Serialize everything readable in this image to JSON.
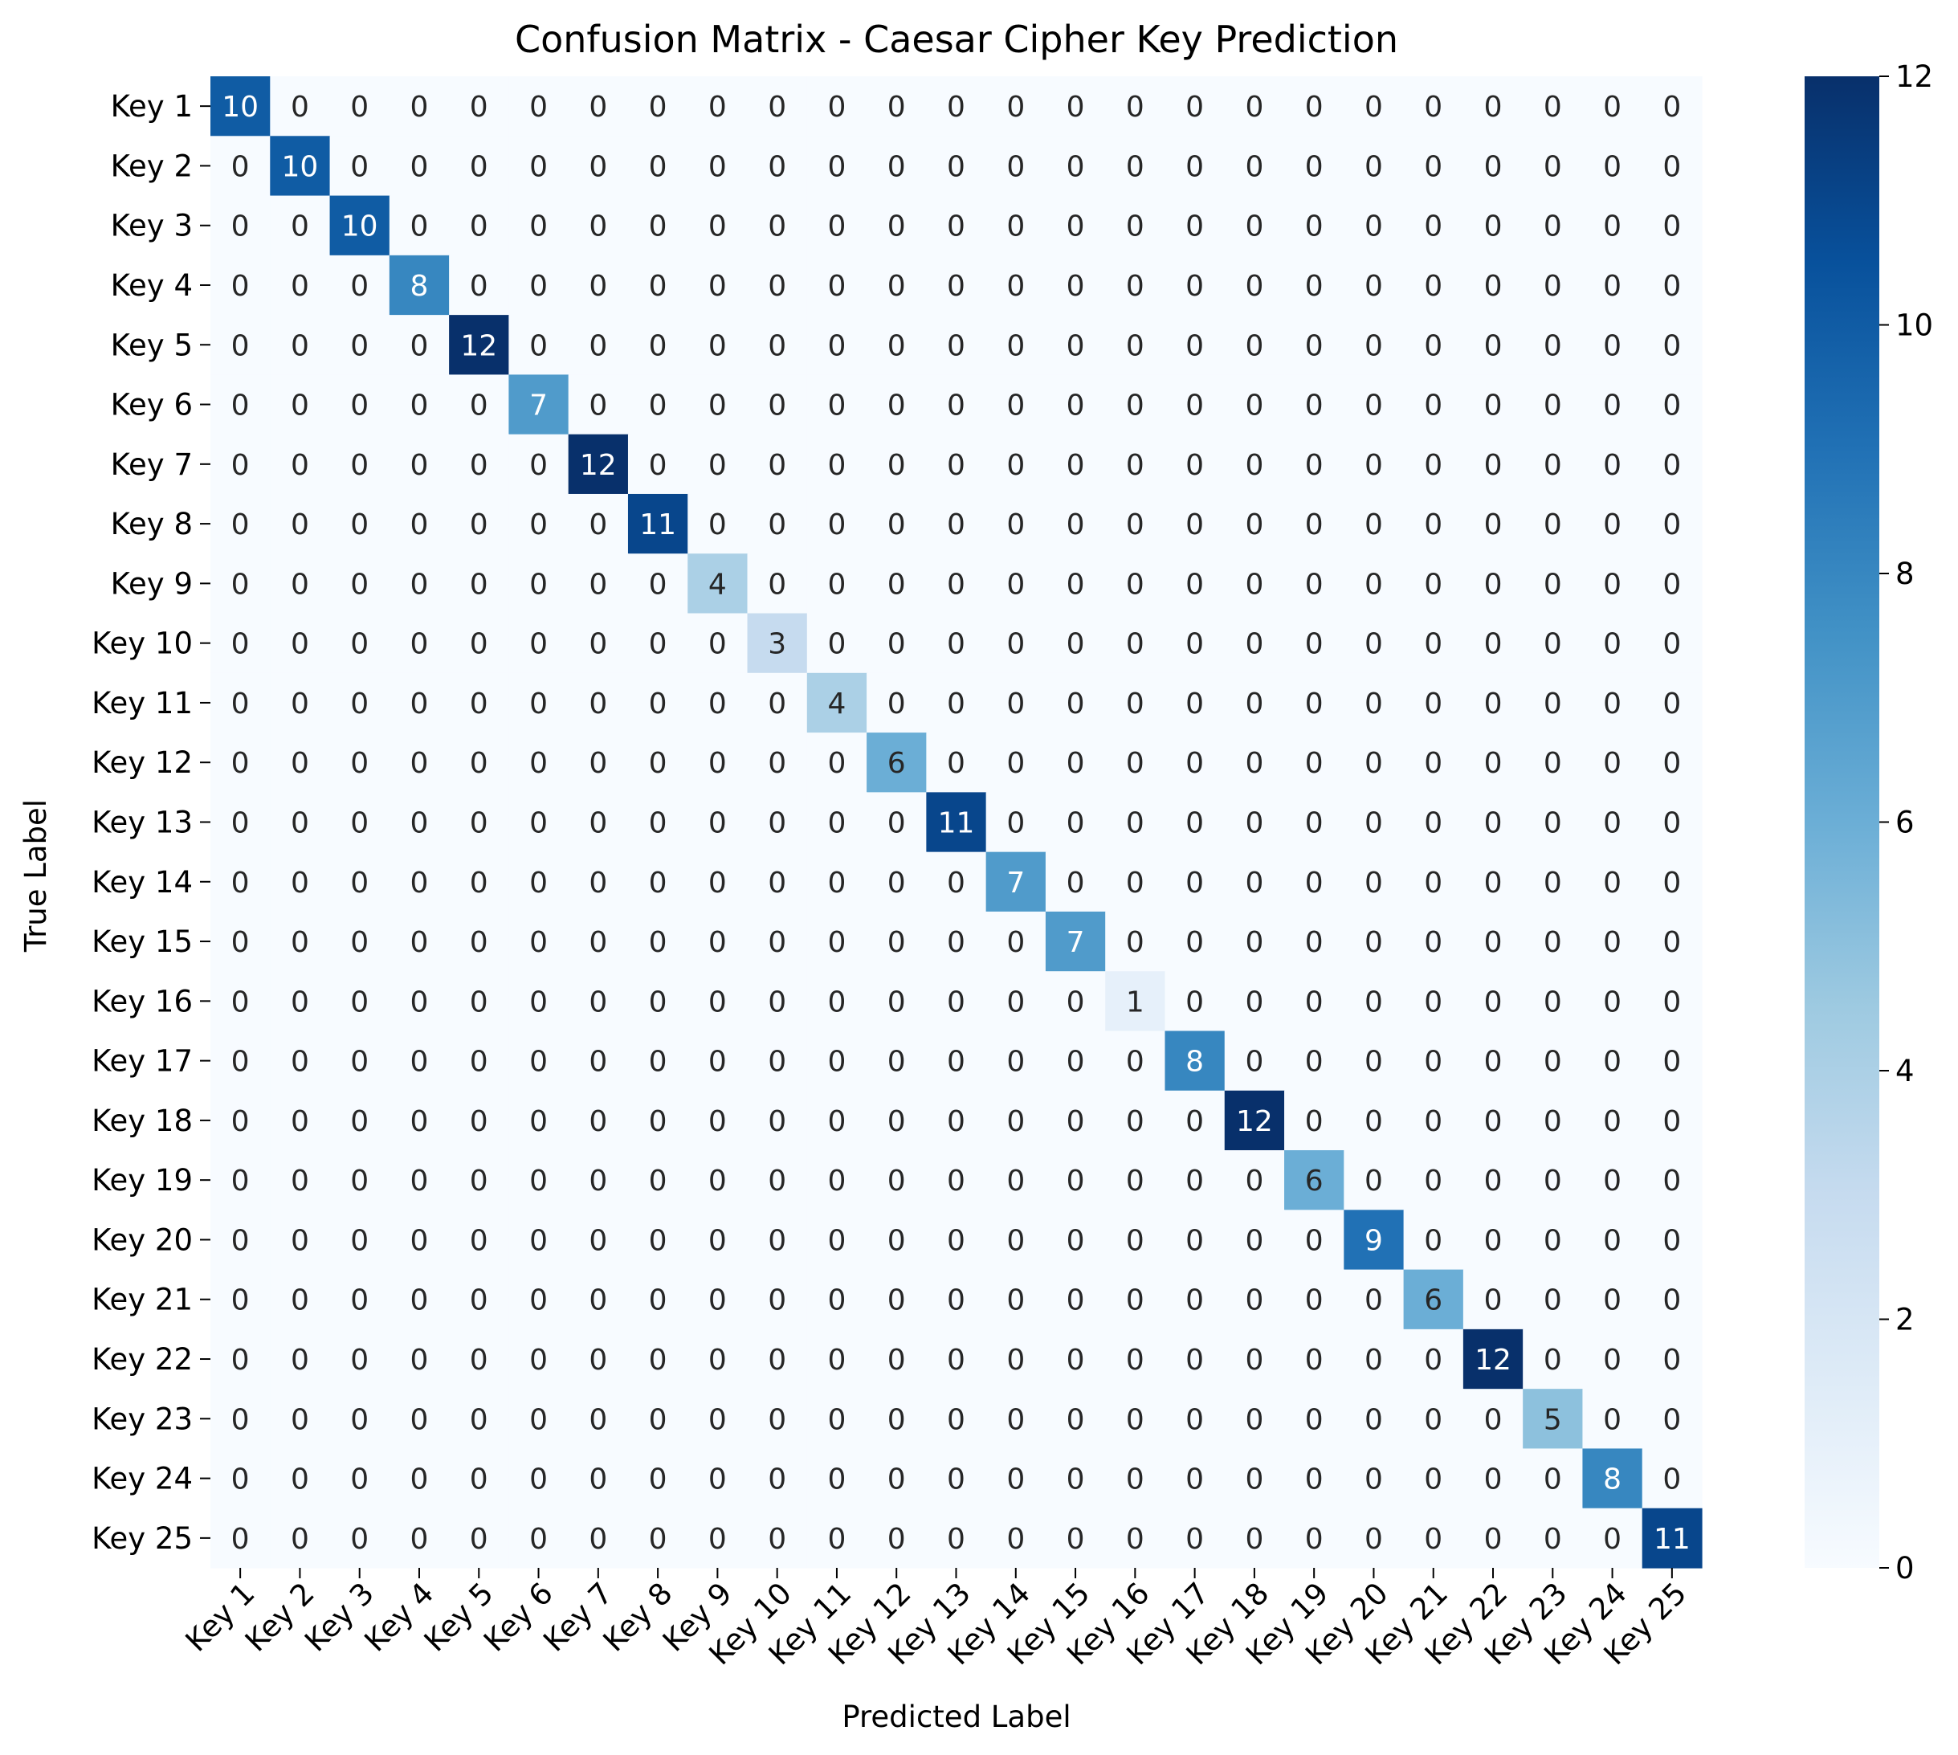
{
  "chart_data": {
    "type": "heatmap",
    "title": "Confusion Matrix - Caesar Cipher Key Prediction",
    "xlabel": "Predicted Label",
    "ylabel": "True Label",
    "x_categories": [
      "Key 1",
      "Key 2",
      "Key 3",
      "Key 4",
      "Key 5",
      "Key 6",
      "Key 7",
      "Key 8",
      "Key 9",
      "Key 10",
      "Key 11",
      "Key 12",
      "Key 13",
      "Key 14",
      "Key 15",
      "Key 16",
      "Key 17",
      "Key 18",
      "Key 19",
      "Key 20",
      "Key 21",
      "Key 22",
      "Key 23",
      "Key 24",
      "Key 25"
    ],
    "y_categories": [
      "Key 1",
      "Key 2",
      "Key 3",
      "Key 4",
      "Key 5",
      "Key 6",
      "Key 7",
      "Key 8",
      "Key 9",
      "Key 10",
      "Key 11",
      "Key 12",
      "Key 13",
      "Key 14",
      "Key 15",
      "Key 16",
      "Key 17",
      "Key 18",
      "Key 19",
      "Key 20",
      "Key 21",
      "Key 22",
      "Key 23",
      "Key 24",
      "Key 25"
    ],
    "diagonal_values": [
      10,
      10,
      10,
      8,
      12,
      7,
      12,
      11,
      4,
      3,
      4,
      6,
      11,
      7,
      7,
      1,
      8,
      12,
      6,
      9,
      6,
      12,
      5,
      8,
      11
    ],
    "off_diagonal_value": 0,
    "colorbar": {
      "range": [
        0,
        12
      ],
      "ticks": [
        0,
        2,
        4,
        6,
        8,
        10,
        12
      ],
      "colormap": "Blues",
      "low_color": "#f7fbff",
      "high_color": "#08306b"
    },
    "grid": false
  }
}
